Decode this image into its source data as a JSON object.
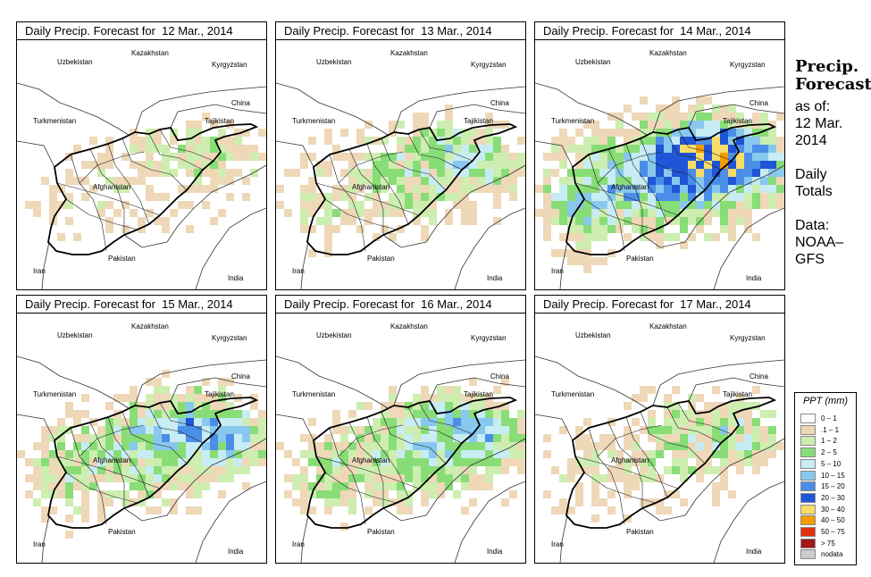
{
  "panels": [
    {
      "title": "Daily Precip. Forecast for  12 Mar., 2014",
      "intensity": 0.2
    },
    {
      "title": "Daily Precip. Forecast for  13 Mar., 2014",
      "intensity": 0.45
    },
    {
      "title": "Daily Precip. Forecast for  14 Mar., 2014",
      "intensity": 1.0
    },
    {
      "title": "Daily Precip. Forecast for  15 Mar., 2014",
      "intensity": 0.65
    },
    {
      "title": "Daily Precip. Forecast for  16 Mar., 2014",
      "intensity": 0.6
    },
    {
      "title": "Daily Precip. Forecast for  17 Mar., 2014",
      "intensity": 0.35
    }
  ],
  "country_labels": [
    "Uzbekistan",
    "Kazakhstan",
    "Kyrgyzstan",
    "China",
    "Turkmenistan",
    "Tajikistan",
    "Afghanistan",
    "Iran",
    "Pakistan",
    "India"
  ],
  "side": {
    "heading1": "Precip.",
    "heading2": "Forecast",
    "asof": "as of:",
    "date1": "12 Mar.",
    "date2": "2014",
    "daily1": "Daily",
    "daily2": "Totals",
    "data1": "Data:",
    "data2": "NOAA–",
    "data3": "GFS"
  },
  "legend": {
    "title": "PPT (mm)",
    "items": [
      {
        "label": "0 – 1",
        "color": "#ffffff"
      },
      {
        "label": ".1 – 1",
        "color": "#eed8b8"
      },
      {
        "label": "1 – 2",
        "color": "#cdeeb0"
      },
      {
        "label": "2 – 5",
        "color": "#88dd77"
      },
      {
        "label": "5 – 10",
        "color": "#c8ecf4"
      },
      {
        "label": "10 – 15",
        "color": "#88c8ee"
      },
      {
        "label": "15 – 20",
        "color": "#4a8ee8"
      },
      {
        "label": "20 – 30",
        "color": "#1f55d6"
      },
      {
        "label": "30 – 40",
        "color": "#f8dc68"
      },
      {
        "label": "40 – 50",
        "color": "#f59c00"
      },
      {
        "label": "50 – 75",
        "color": "#e03010"
      },
      {
        "label": "> 75",
        "color": "#a01818"
      },
      {
        "label": "nodata",
        "color": "#cccccc"
      }
    ]
  }
}
